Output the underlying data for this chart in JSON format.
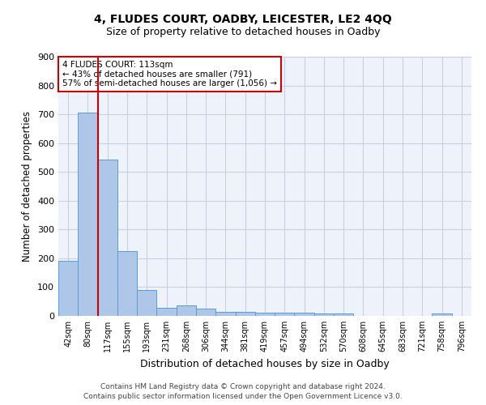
{
  "title_line1": "4, FLUDES COURT, OADBY, LEICESTER, LE2 4QQ",
  "title_line2": "Size of property relative to detached houses in Oadby",
  "xlabel": "Distribution of detached houses by size in Oadby",
  "ylabel": "Number of detached properties",
  "categories": [
    "42sqm",
    "80sqm",
    "117sqm",
    "155sqm",
    "193sqm",
    "231sqm",
    "268sqm",
    "306sqm",
    "344sqm",
    "381sqm",
    "419sqm",
    "457sqm",
    "494sqm",
    "532sqm",
    "570sqm",
    "608sqm",
    "645sqm",
    "683sqm",
    "721sqm",
    "758sqm",
    "796sqm"
  ],
  "values": [
    190,
    707,
    543,
    224,
    91,
    27,
    37,
    24,
    15,
    13,
    12,
    11,
    10,
    9,
    8,
    0,
    0,
    0,
    0,
    9,
    0
  ],
  "bar_color": "#aec6e8",
  "bar_edge_color": "#5b9bd5",
  "vline_x": 1.5,
  "vline_color": "#cc0000",
  "annotation_text": "4 FLUDES COURT: 113sqm\n← 43% of detached houses are smaller (791)\n57% of semi-detached houses are larger (1,056) →",
  "annotation_box_color": "#cc0000",
  "ylim": [
    0,
    900
  ],
  "yticks": [
    0,
    100,
    200,
    300,
    400,
    500,
    600,
    700,
    800,
    900
  ],
  "footer_line1": "Contains HM Land Registry data © Crown copyright and database right 2024.",
  "footer_line2": "Contains public sector information licensed under the Open Government Licence v3.0.",
  "bg_color": "#eef2fb",
  "grid_color": "#c8cfe0",
  "title_fontsize": 10,
  "subtitle_fontsize": 9,
  "bar_width": 1.0
}
